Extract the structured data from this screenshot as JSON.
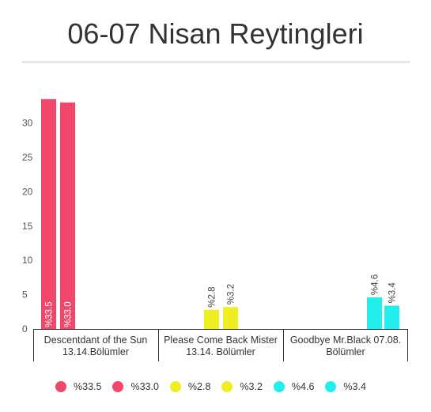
{
  "title": "06-07 Nisan Reytingleri",
  "chart_data": {
    "type": "bar",
    "ylim": [
      0,
      33
    ],
    "yticks": [
      0,
      5,
      10,
      15,
      20,
      25,
      30
    ],
    "grid": false,
    "legend_position": "bottom",
    "groups": [
      {
        "label_lines": [
          "Descentdant of the Sun",
          "13.14.Bölümler"
        ],
        "bars": [
          {
            "label": "%33.5",
            "value": 33.5,
            "color": "#f2476a"
          },
          {
            "label": "%33.0",
            "value": 33.0,
            "color": "#f2476a"
          }
        ]
      },
      {
        "label_lines": [
          "Please Come Back Mister",
          "13.14. Bölümler"
        ],
        "bars": [
          {
            "label": "%2.8",
            "value": 2.8,
            "color": "#eeee22"
          },
          {
            "label": "%3.2",
            "value": 3.2,
            "color": "#eeee22"
          }
        ]
      },
      {
        "label_lines": [
          "Goodbye Mr.Black 07.08.",
          "Bölümler"
        ],
        "bars": [
          {
            "label": "%4.6",
            "value": 4.6,
            "color": "#22eeee"
          },
          {
            "label": "%3.4",
            "value": 3.4,
            "color": "#22eeee"
          }
        ]
      }
    ]
  }
}
